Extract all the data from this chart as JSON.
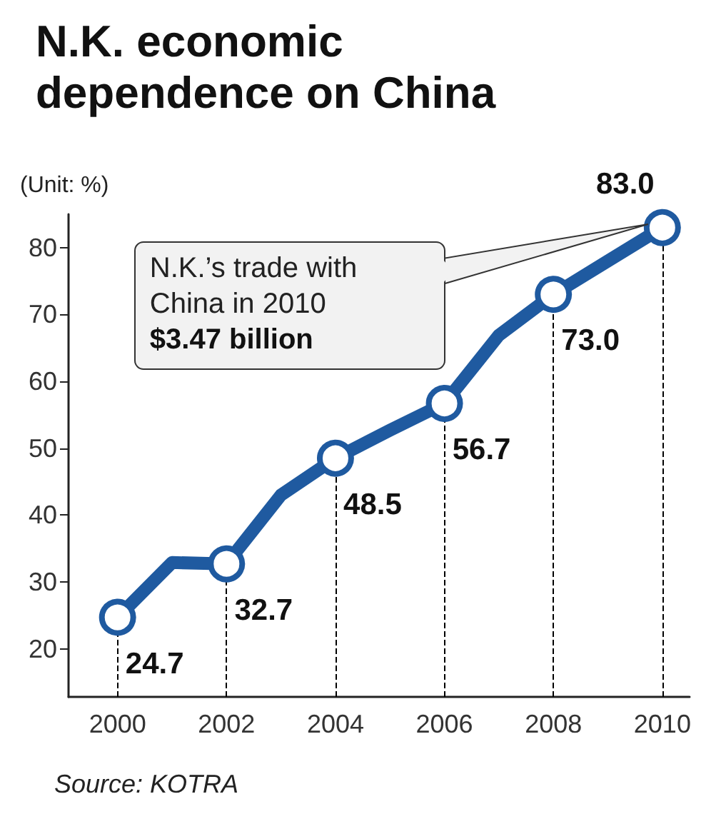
{
  "chart_data": {
    "type": "line",
    "title": "N.K. economic\ndependence on China",
    "ylabel": "(Unit: %)",
    "x": [
      2000,
      2001,
      2002,
      2003,
      2004,
      2005,
      2006,
      2007,
      2008,
      2009,
      2010
    ],
    "series": [
      {
        "color": "#1f5aa0",
        "values": [
          24.7,
          32.9,
          32.7,
          43.0,
          48.5,
          52.7,
          56.7,
          66.9,
          73.0,
          78.0,
          83.0
        ],
        "value_labels": [
          "24.7",
          null,
          "32.7",
          null,
          "48.5",
          null,
          "56.7",
          null,
          "73.0",
          null,
          "83.0"
        ]
      }
    ],
    "xlim": [
      1999.1,
      2010.5
    ],
    "xticks": [
      2000,
      2002,
      2004,
      2006,
      2008,
      2010
    ],
    "ylim": [
      12.8,
      85
    ],
    "yticks": [
      20,
      30,
      40,
      50,
      60,
      70,
      80
    ],
    "marker": "circle",
    "grid": false,
    "ref_lines": [
      {
        "axis": "x",
        "value": 2000,
        "line_style": "dashed"
      },
      {
        "axis": "x",
        "value": 2002,
        "line_style": "dashed"
      },
      {
        "axis": "x",
        "value": 2004,
        "line_style": "dashed"
      },
      {
        "axis": "x",
        "value": 2006,
        "line_style": "dashed"
      },
      {
        "axis": "x",
        "value": 2008,
        "line_style": "dashed"
      },
      {
        "axis": "x",
        "value": 2010,
        "line_style": "dashed"
      }
    ],
    "annotations": [
      "N.K.’s trade with\nChina in 2010\n$3.47 billion",
      "Source: KOTRA"
    ]
  }
}
